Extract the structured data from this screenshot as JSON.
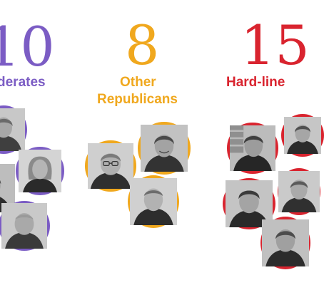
{
  "groups": [
    {
      "count": "10",
      "label": "derates",
      "color": "#7b5cc4",
      "portraits": [
        {
          "icon": "portrait-man-gray-hair-icon",
          "bg": "#c8c8c8",
          "face": "#a7a7a7",
          "hair": "#6a6a6a",
          "shirt": "#3f3f3f"
        },
        {
          "icon": "portrait-man-partial-icon",
          "bg": "#bdbdbd",
          "face": "#9d9d9d",
          "hair": "#555555",
          "shirt": "#2e2e2e"
        },
        {
          "icon": "portrait-woman-blonde-icon",
          "bg": "#d4d4d4",
          "face": "#b5b5b5",
          "hair": "#8a8a8a",
          "shirt": "#2a2a2a"
        },
        {
          "icon": "portrait-man-older-icon",
          "bg": "#c9c9c9",
          "face": "#a9a9a9",
          "hair": "#9a9a9a",
          "shirt": "#3a3a3a"
        }
      ]
    },
    {
      "count": "8",
      "label_line1": "Other",
      "label_line2": "Republicans",
      "color": "#f0a81e",
      "portraits": [
        {
          "icon": "portrait-man-glasses-icon",
          "bg": "#cfcfcf",
          "face": "#b0b0b0",
          "hair": "#7a7a7a",
          "shirt": "#2f2f2f"
        },
        {
          "icon": "portrait-man-smiling-icon",
          "bg": "#c2c2c2",
          "face": "#a3a3a3",
          "hair": "#4a4a4a",
          "shirt": "#333333"
        },
        {
          "icon": "portrait-man-short-hair-icon",
          "bg": "#d0d0d0",
          "face": "#b2b2b2",
          "hair": "#6c6c6c",
          "shirt": "#2d2d2d"
        }
      ]
    },
    {
      "count": "15",
      "label": "Hard-line",
      "color": "#d9242f",
      "portraits": [
        {
          "icon": "portrait-man-flag-background-icon",
          "bg": "#bcbcbc",
          "face": "#9c9c9c",
          "hair": "#3f3f3f",
          "shirt": "#262626"
        },
        {
          "icon": "portrait-man-partial-icon",
          "bg": "#c6c6c6",
          "face": "#a6a6a6",
          "hair": "#4f4f4f",
          "shirt": "#2b2b2b"
        },
        {
          "icon": "portrait-man-dark-hair-icon",
          "bg": "#c4c4c4",
          "face": "#a4a4a4",
          "hair": "#3b3b3b",
          "shirt": "#2a2a2a"
        },
        {
          "icon": "portrait-man-partial-icon",
          "bg": "#cacaca",
          "face": "#aaaaaa",
          "hair": "#5b5b5b",
          "shirt": "#303030"
        },
        {
          "icon": "portrait-man-partial-icon",
          "bg": "#c0c0c0",
          "face": "#a0a0a0",
          "hair": "#4c4c4c",
          "shirt": "#2c2c2c"
        }
      ]
    }
  ]
}
